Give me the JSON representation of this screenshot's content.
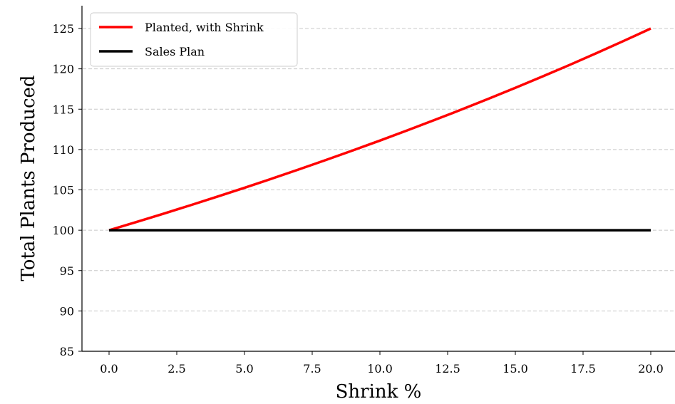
{
  "chart_data": {
    "type": "line",
    "title": "",
    "xlabel": "Shrink %",
    "ylabel": "Total Plants Produced",
    "xlim": [
      -1,
      20.2
    ],
    "ylim": [
      85,
      128
    ],
    "xticks": [
      0.0,
      2.5,
      5.0,
      7.5,
      10.0,
      12.5,
      15.0,
      17.5,
      20.0
    ],
    "xtick_labels": [
      "0.0",
      "2.5",
      "5.0",
      "7.5",
      "10.0",
      "12.5",
      "15.0",
      "17.5",
      "20.0"
    ],
    "yticks": [
      85,
      90,
      95,
      100,
      105,
      110,
      115,
      120,
      125
    ],
    "ytick_labels": [
      "85",
      "90",
      "95",
      "100",
      "105",
      "110",
      "115",
      "120",
      "125"
    ],
    "grid": "horizontal-dashed",
    "legend_position": "top-left",
    "series": [
      {
        "name": "Planted, with Shrink",
        "color": "#ff0000",
        "x": [
          0,
          1,
          2,
          3,
          4,
          5,
          6,
          7,
          8,
          9,
          10,
          11,
          12,
          13,
          14,
          15,
          16,
          17,
          18,
          19,
          20
        ],
        "y": [
          100.0,
          101.01,
          102.04,
          103.09,
          104.17,
          105.26,
          106.38,
          107.53,
          108.7,
          109.89,
          111.11,
          112.36,
          113.64,
          114.94,
          116.28,
          117.65,
          119.05,
          120.48,
          121.95,
          123.46,
          125.0
        ]
      },
      {
        "name": "Sales Plan",
        "color": "#000000",
        "x": [
          0,
          20
        ],
        "y": [
          100,
          100
        ]
      }
    ]
  }
}
